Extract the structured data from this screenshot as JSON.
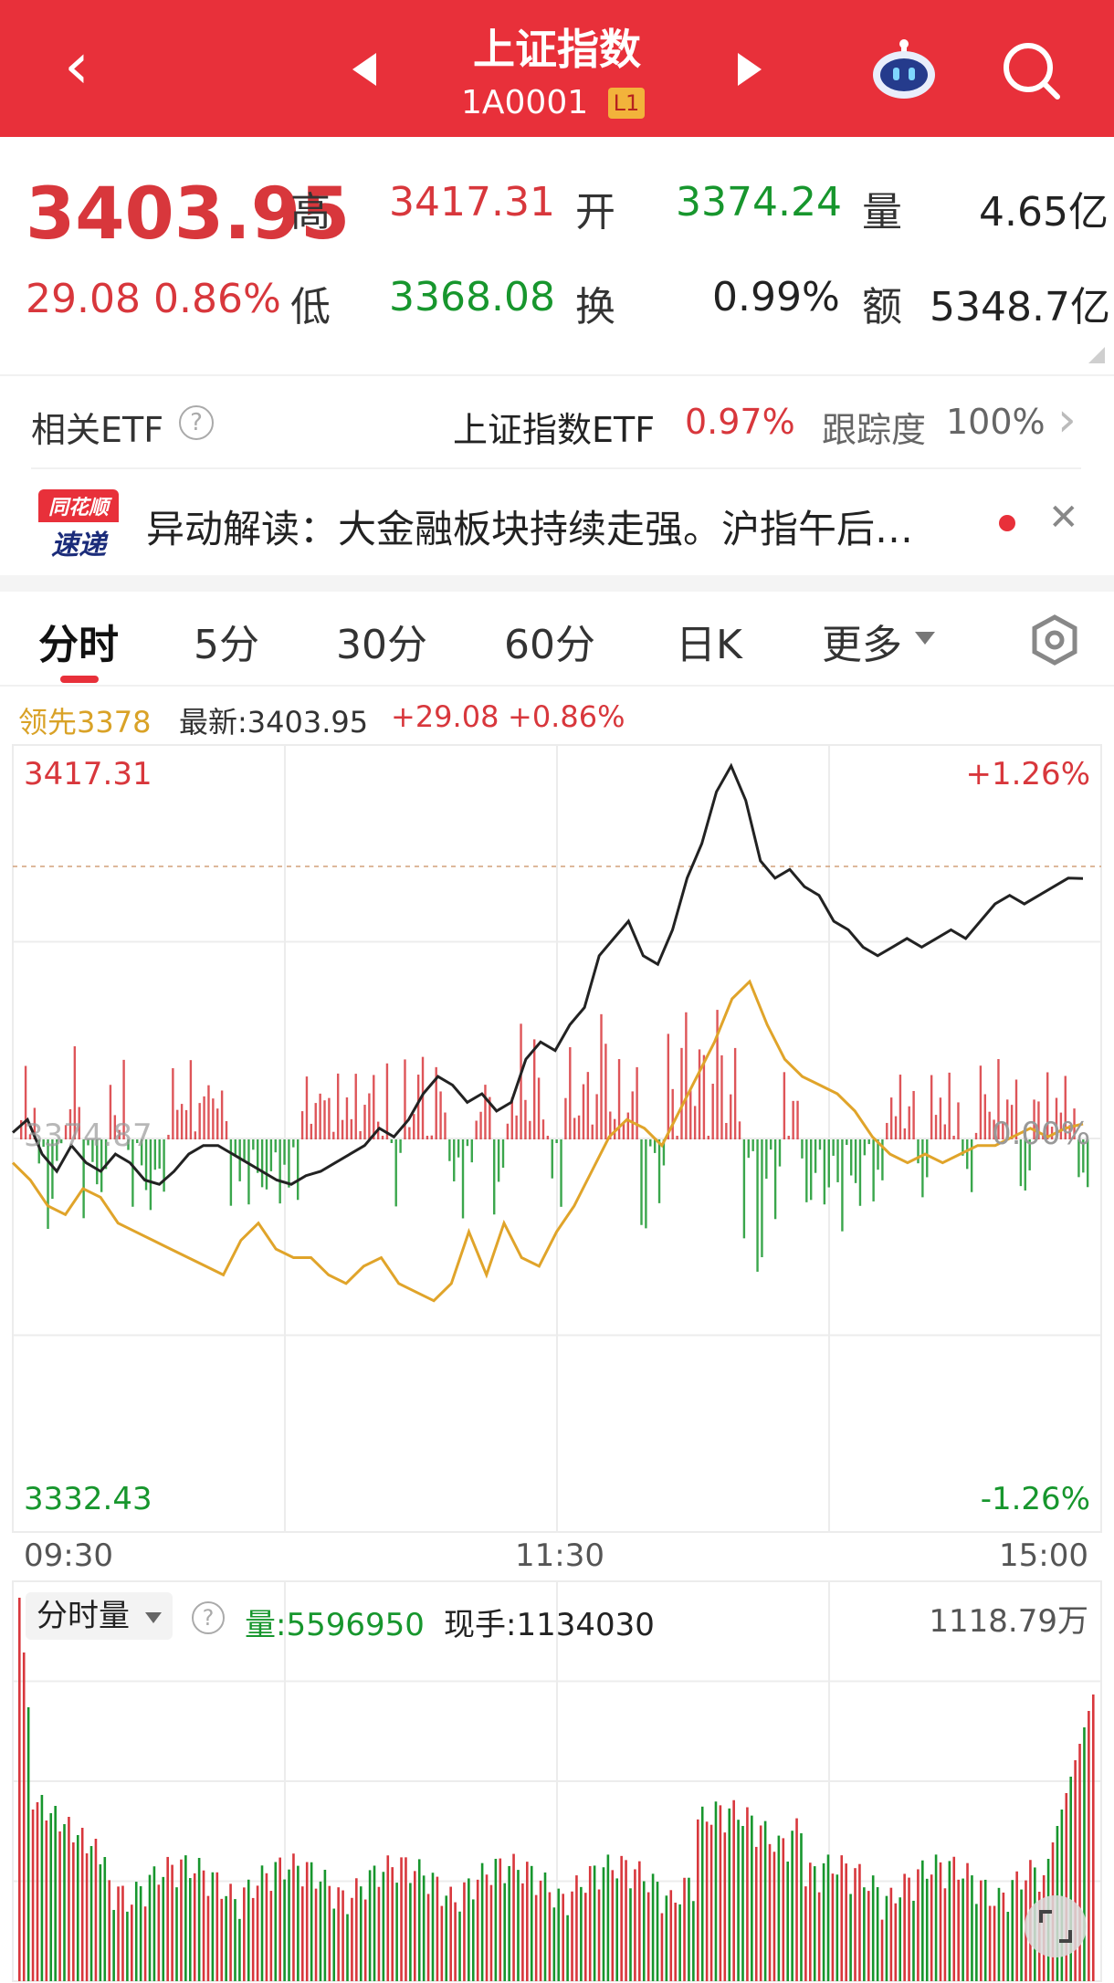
{
  "header": {
    "title": "上证指数",
    "code": "1A0001",
    "level_badge": "L1",
    "back_icon": "chevron-left-icon",
    "prev_icon": "triangle-left-icon",
    "next_icon": "triangle-right-icon",
    "robot_icon": "robot-assistant-icon",
    "search_icon": "search-icon",
    "bg_color": "#e8303a"
  },
  "quote": {
    "price": "3403.95",
    "change": "29.08",
    "change_pct": "0.86%",
    "high_label": "高",
    "high": "3417.31",
    "low_label": "低",
    "low": "3368.08",
    "open_label": "开",
    "open": "3374.24",
    "turnover_label": "换",
    "turnover": "0.99%",
    "volume_label": "量",
    "volume": "4.65亿",
    "amount_label": "额",
    "amount": "5348.7亿"
  },
  "etf": {
    "label": "相关ETF",
    "name": "上证指数ETF",
    "pct": "0.97%",
    "tracking_label": "跟踪度",
    "tracking": "100%"
  },
  "news": {
    "logo_top": "同花顺",
    "logo_bottom": "速递",
    "text": "异动解读：大金融板块持续走强。沪指午后…"
  },
  "tabs": [
    {
      "label": "分时",
      "active": true
    },
    {
      "label": "5分"
    },
    {
      "label": "30分"
    },
    {
      "label": "60分"
    },
    {
      "label": "日K"
    },
    {
      "label": "更多"
    }
  ],
  "chart_info": {
    "lead_label": "领先3378",
    "latest_label": "最新:3403.95",
    "change": "+29.08",
    "change_pct": "+0.86%"
  },
  "chart_data": {
    "type": "line",
    "y_top": "3417.31",
    "y_bottom": "3332.43",
    "pct_top": "+1.26%",
    "pct_bottom": "-1.26%",
    "pct_mid": "0.00%",
    "prev_close_label": "3374.87",
    "x_labels": [
      "09:30",
      "11:30",
      "15:00"
    ],
    "ylim": [
      3332.43,
      3417.31
    ],
    "series": [
      {
        "color": "#222222",
        "values": [
          3374.5,
          3376,
          3372,
          3370,
          3373,
          3371,
          3370,
          3372,
          3371,
          3369,
          3368.5,
          3370,
          3372,
          3373,
          3373,
          3372,
          3371,
          3370,
          3369,
          3368.5,
          3369.5,
          3370,
          3371,
          3372,
          3373,
          3375,
          3374,
          3376,
          3379,
          3381,
          3380,
          3378,
          3379,
          3377,
          3378,
          3383,
          3385,
          3384,
          3387,
          3389,
          3395,
          3397,
          3399,
          3395,
          3394,
          3398,
          3404,
          3408,
          3414,
          3417,
          3413,
          3406,
          3404,
          3405,
          3403,
          3402,
          3399,
          3398,
          3396,
          3395,
          3396,
          3397,
          3396,
          3397,
          3398,
          3397,
          3399,
          3401,
          3402,
          3401,
          3402,
          3403,
          3404,
          3403.95
        ]
      },
      {
        "color": "#e0a42a",
        "values": [
          3371,
          3369,
          3366,
          3365,
          3368,
          3367,
          3364,
          3363,
          3362,
          3361,
          3360,
          3359,
          3358,
          3362,
          3364,
          3361,
          3360,
          3360,
          3358,
          3357,
          3359,
          3360,
          3357,
          3356,
          3355,
          3357,
          3363,
          3358,
          3364,
          3360,
          3359,
          3363,
          3366,
          3370,
          3374,
          3376,
          3375,
          3373,
          3377,
          3381,
          3385,
          3390,
          3392,
          3387,
          3383,
          3381,
          3380,
          3379,
          3377,
          3374,
          3372,
          3371,
          3372,
          3371,
          3372,
          3373,
          3373,
          3374,
          3375,
          3374,
          3375,
          3375.5
        ]
      }
    ],
    "volume_panel": {
      "label": "分时量",
      "volume": "量:5596950",
      "hand": "现手:1134030",
      "max_label": "1118.79万"
    }
  },
  "colors": {
    "up": "#d8373c",
    "down": "#17962d",
    "avg": "#e0a42a",
    "price": "#222222"
  }
}
